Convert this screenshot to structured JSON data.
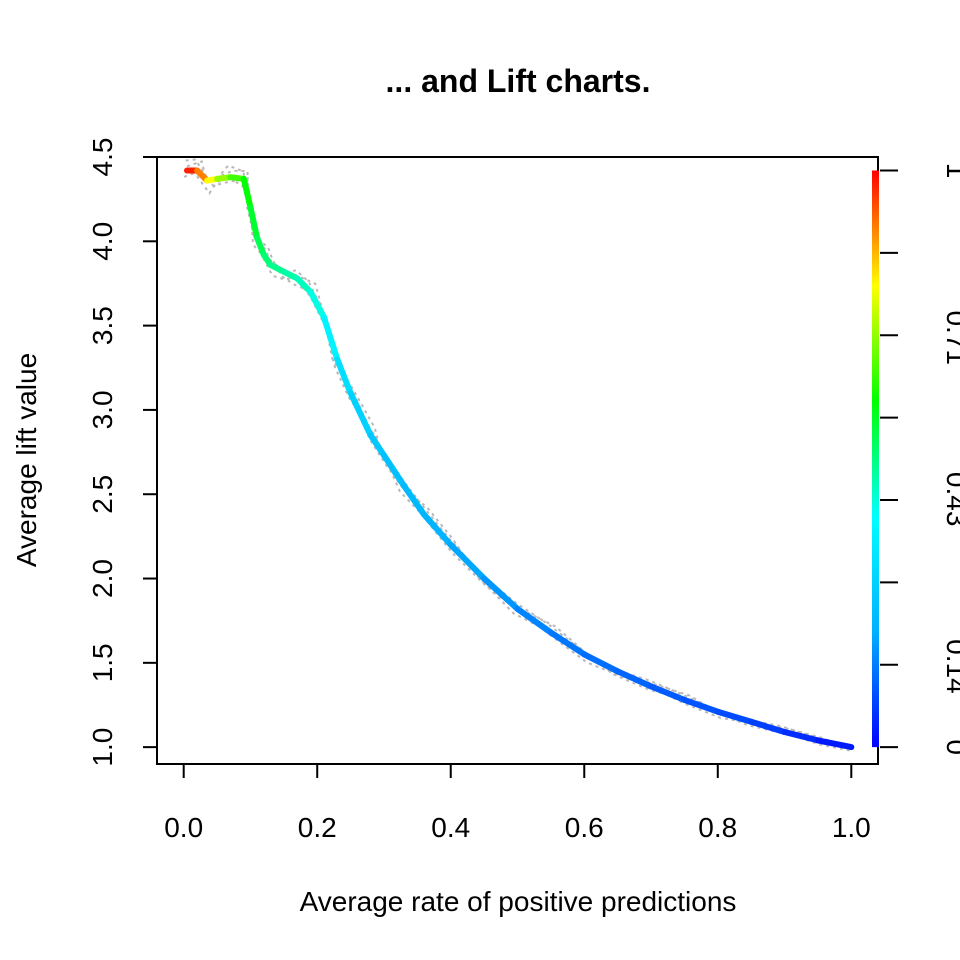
{
  "chart_data": {
    "type": "line",
    "title": "... and Lift charts.",
    "xlabel": "Average rate of positive predictions",
    "ylabel": "Average lift value",
    "xlim": [
      -0.04,
      1.04
    ],
    "ylim": [
      0.9,
      4.5
    ],
    "x_ticks": [
      "0.0",
      "0.2",
      "0.4",
      "0.6",
      "0.8",
      "1.0"
    ],
    "y_ticks": [
      "1.0",
      "1.5",
      "2.0",
      "2.5",
      "3.0",
      "3.5",
      "4.0",
      "4.5"
    ],
    "colorbar": {
      "ticks": [
        "0",
        "0.14",
        "0.43",
        "0.71",
        "1"
      ],
      "colors": [
        "#0000ff",
        "#00b0ff",
        "#00ffff",
        "#00ff00",
        "#ffff00",
        "#ff0000"
      ],
      "min": 0,
      "max": 1
    },
    "series": [
      {
        "x": [
          0.005,
          0.02,
          0.035,
          0.05,
          0.07,
          0.09,
          0.1,
          0.11,
          0.12,
          0.13,
          0.15,
          0.17,
          0.19,
          0.21,
          0.23,
          0.25,
          0.28,
          0.3,
          0.33,
          0.36,
          0.4,
          0.45,
          0.5,
          0.55,
          0.6,
          0.65,
          0.7,
          0.75,
          0.8,
          0.85,
          0.9,
          0.95,
          1.0
        ],
        "y": [
          4.42,
          4.42,
          4.36,
          4.37,
          4.38,
          4.37,
          4.2,
          4.02,
          3.92,
          3.86,
          3.82,
          3.78,
          3.7,
          3.55,
          3.3,
          3.1,
          2.85,
          2.73,
          2.55,
          2.38,
          2.2,
          2.0,
          1.82,
          1.68,
          1.55,
          1.45,
          1.36,
          1.28,
          1.21,
          1.15,
          1.09,
          1.04,
          1.0
        ],
        "cutoff": [
          1.0,
          0.95,
          0.85,
          0.75,
          0.68,
          0.62,
          0.58,
          0.55,
          0.52,
          0.5,
          0.48,
          0.46,
          0.44,
          0.4,
          0.34,
          0.3,
          0.27,
          0.25,
          0.23,
          0.22,
          0.2,
          0.18,
          0.16,
          0.14,
          0.13,
          0.12,
          0.11,
          0.1,
          0.09,
          0.08,
          0.06,
          0.04,
          0.02
        ]
      }
    ]
  }
}
